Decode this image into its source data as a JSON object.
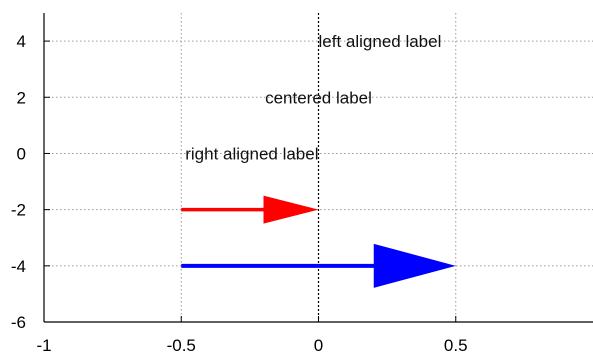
{
  "chart_data": {
    "type": "scatter",
    "xlim": [
      -1,
      1
    ],
    "ylim": [
      -6,
      5
    ],
    "x_ticks": [
      -1,
      -0.5,
      0,
      0.5
    ],
    "x_tick_labels": [
      "-1",
      "-0.5",
      "0",
      "0.5"
    ],
    "y_ticks": [
      -6,
      -4,
      -2,
      0,
      2,
      4
    ],
    "y_tick_labels": [
      "-6",
      "-4",
      "-2",
      "0",
      "2",
      "4"
    ],
    "grid": true,
    "vertical_line_x": 0,
    "annotations": [
      {
        "text": "left aligned label",
        "x": 0,
        "y": 4,
        "align": "left"
      },
      {
        "text": "centered label",
        "x": 0,
        "y": 2,
        "align": "center"
      },
      {
        "text": "right aligned label",
        "x": 0,
        "y": 0,
        "align": "right"
      }
    ],
    "arrows": [
      {
        "from": [
          -0.5,
          -2
        ],
        "to": [
          0,
          -2
        ],
        "color": "#ff0000",
        "head": "medium"
      },
      {
        "from": [
          -0.5,
          -4
        ],
        "to": [
          0.5,
          -4
        ],
        "color": "#0000ff",
        "head": "large"
      }
    ]
  },
  "colors": {
    "red_arrow": "#ff0000",
    "blue_arrow": "#0000ff"
  }
}
